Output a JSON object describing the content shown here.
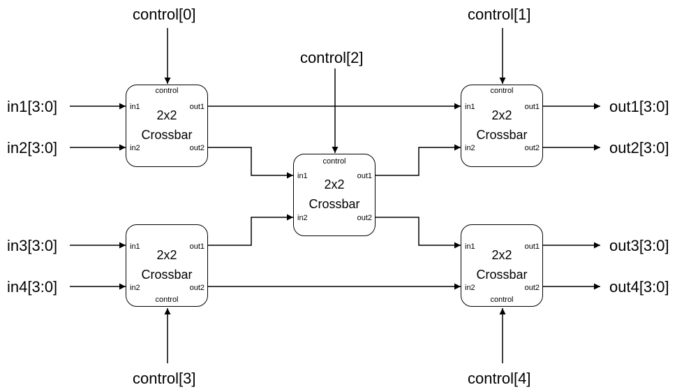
{
  "inputs": [
    "in1[3:0]",
    "in2[3:0]",
    "in3[3:0]",
    "in4[3:0]"
  ],
  "outputs": [
    "out1[3:0]",
    "out2[3:0]",
    "out3[3:0]",
    "out4[3:0]"
  ],
  "controls": [
    "control[0]",
    "control[1]",
    "control[2]",
    "control[3]",
    "control[4]"
  ],
  "block": {
    "title_line1": "2x2",
    "title_line2": "Crossbar",
    "port_in1": "in1",
    "port_in2": "in2",
    "port_out1": "out1",
    "port_out2": "out2",
    "port_control": "control"
  },
  "colors": {
    "line": "#000000",
    "background": "#ffffff"
  }
}
